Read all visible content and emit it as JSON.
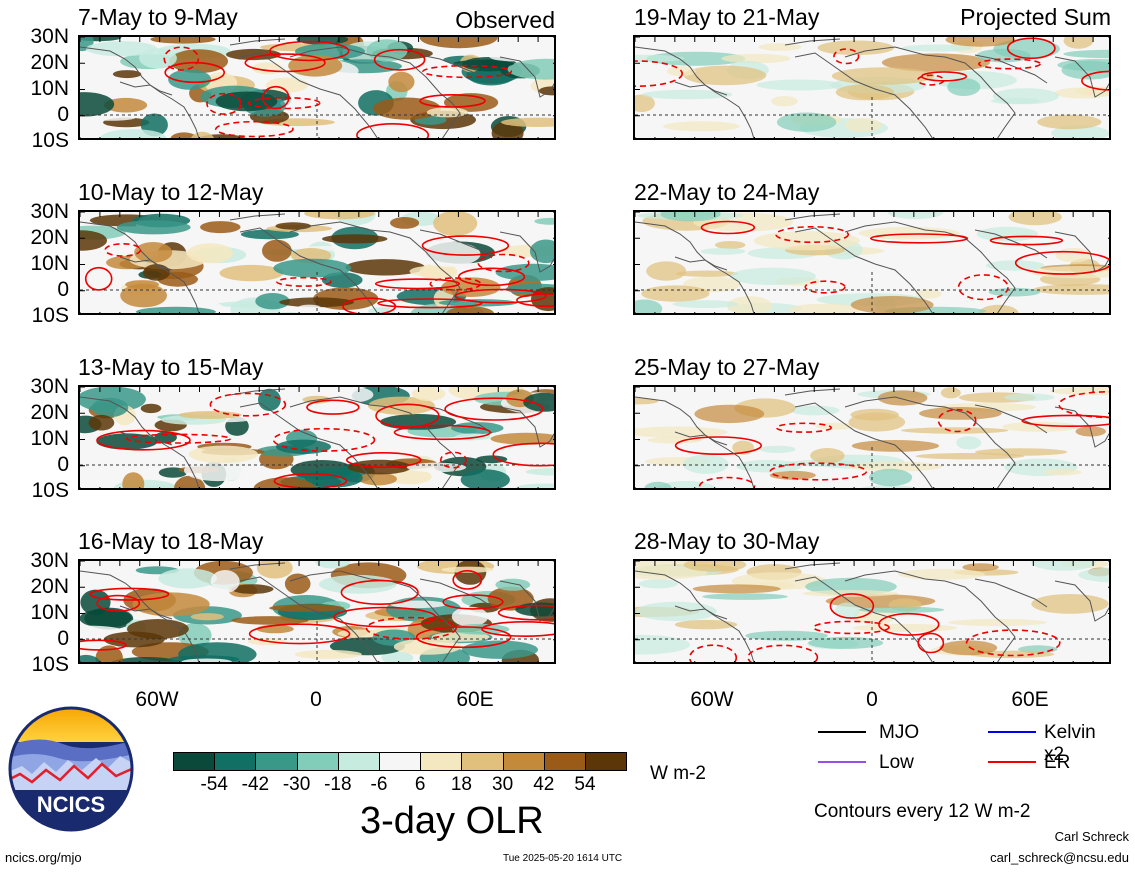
{
  "panels": [
    {
      "id": "obs1",
      "title": "7-May to 9-May",
      "corner_label": "Observed"
    },
    {
      "id": "obs2",
      "title": "10-May to 12-May",
      "corner_label": ""
    },
    {
      "id": "obs3",
      "title": "13-May to 15-May",
      "corner_label": ""
    },
    {
      "id": "obs4",
      "title": "16-May to 18-May",
      "corner_label": ""
    },
    {
      "id": "proj1",
      "title": "19-May to 21-May",
      "corner_label": "Projected Sum"
    },
    {
      "id": "proj2",
      "title": "22-May to 24-May",
      "corner_label": ""
    },
    {
      "id": "proj3",
      "title": "25-May to 27-May",
      "corner_label": ""
    },
    {
      "id": "proj4",
      "title": "28-May to 30-May",
      "corner_label": ""
    }
  ],
  "lat_labels": [
    "30N",
    "20N",
    "10N",
    "0",
    "10S"
  ],
  "lon_labels": [
    "60W",
    "0",
    "60E"
  ],
  "colorbar": {
    "colors": [
      "#0b4a3a",
      "#116f63",
      "#3a9889",
      "#82cdb9",
      "#c8ebe0",
      "#f6f6f6",
      "#f4e8c1",
      "#e0c07c",
      "#c48a3c",
      "#9a5a18",
      "#5c3608"
    ],
    "labels": [
      "-54",
      "-42",
      "-30",
      "-18",
      "-6",
      "6",
      "18",
      "30",
      "42",
      "54"
    ],
    "units": "W m-2",
    "title": "3-day OLR"
  },
  "legend": {
    "items": [
      {
        "label": "MJO",
        "color": "#000000"
      },
      {
        "label": "Kelvin x2",
        "color": "#0000ee"
      },
      {
        "label": "Low",
        "color": "#9a4fe0"
      },
      {
        "label": "ER",
        "color": "#ee0000"
      }
    ],
    "note": "Contours every 12 W m-2"
  },
  "logo": {
    "text": "NCICS"
  },
  "footer": {
    "left": "ncics.org/mjo",
    "center": "Tue 2025-05-20 1614 UTC",
    "author": "Carl Schreck",
    "email": "carl_schreck@ncsu.edu"
  }
}
